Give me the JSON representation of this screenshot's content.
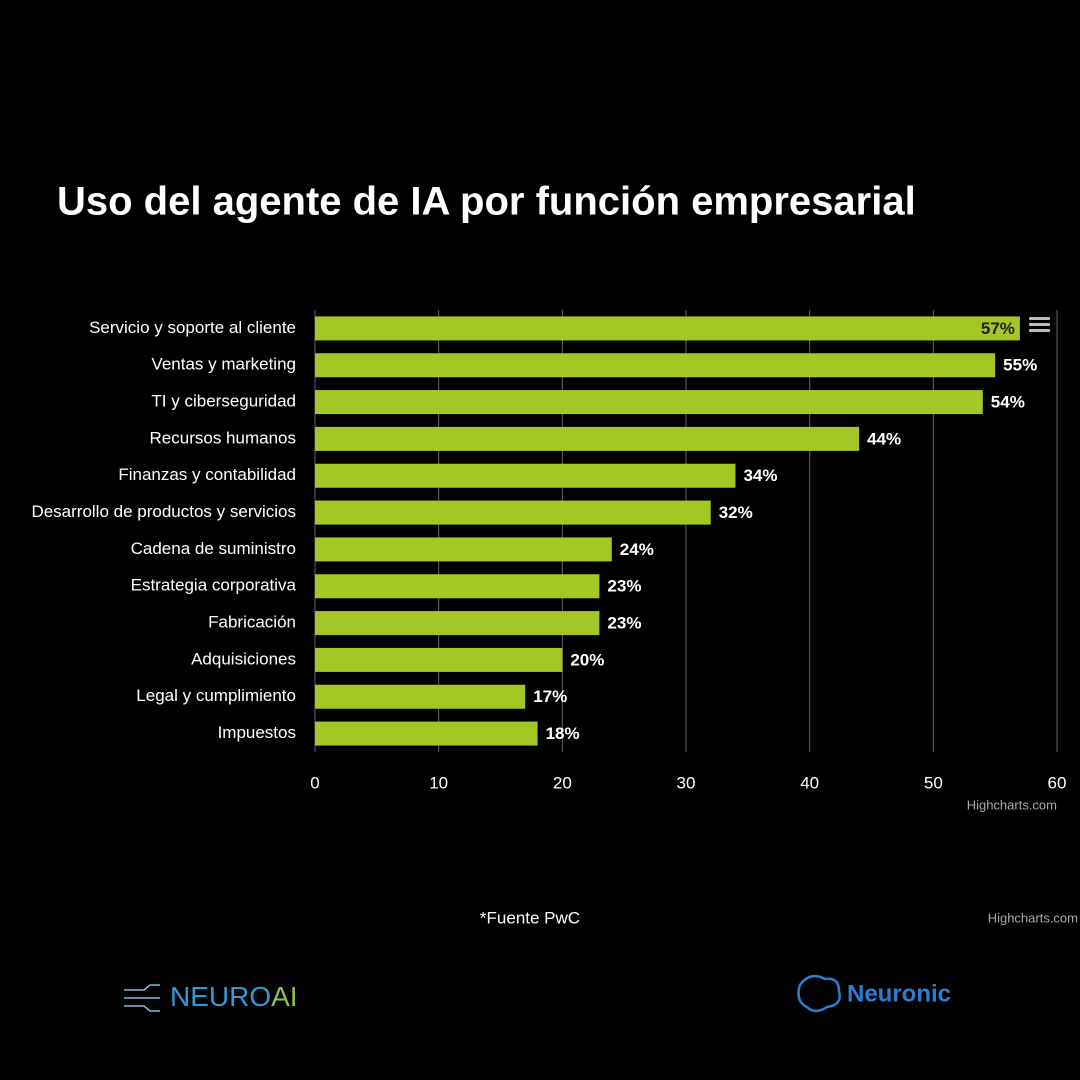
{
  "chart_data": {
    "type": "bar",
    "horizontal": true,
    "title": "Uso del agente de IA por función empresarial",
    "categories": [
      "Servicio y soporte al cliente",
      "Ventas y marketing",
      "TI y ciberseguridad",
      "Recursos humanos",
      "Finanzas y contabilidad",
      "Desarrollo de productos y servicios",
      "Cadena de suministro",
      "Estrategia corporativa",
      "Fabricación",
      "Adquisiciones",
      "Legal y cumplimiento",
      "Impuestos"
    ],
    "values": [
      57,
      55,
      54,
      44,
      34,
      32,
      24,
      23,
      23,
      20,
      17,
      18
    ],
    "value_labels": [
      "57%",
      "55%",
      "54%",
      "44%",
      "34%",
      "32%",
      "24%",
      "23%",
      "23%",
      "20%",
      "17%",
      "18%"
    ],
    "color": "#a3c724",
    "xlim": [
      0,
      60
    ],
    "xticks": [
      0,
      10,
      20,
      30,
      40,
      50,
      60
    ],
    "grid": true,
    "credits": [
      "Highcharts.com",
      "Highcharts.com"
    ],
    "source": "*Fuente PwC",
    "logos": [
      "NEURO",
      "AI",
      "Neuronic"
    ]
  }
}
